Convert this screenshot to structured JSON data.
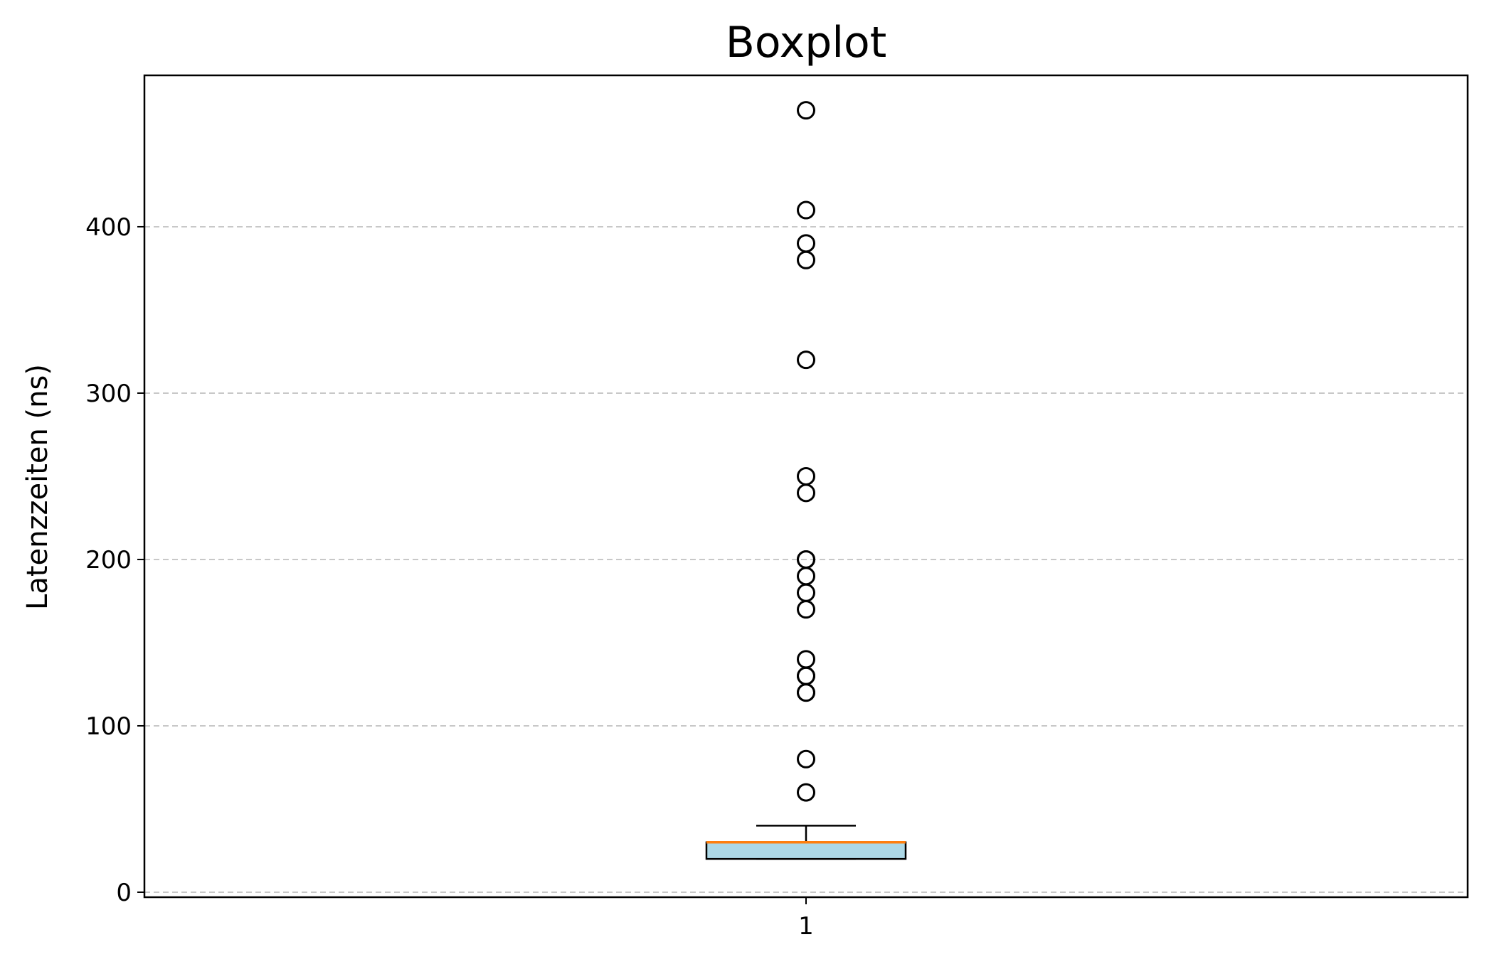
{
  "chart_data": {
    "type": "boxplot",
    "title": "Boxplot",
    "xlabel": "",
    "ylabel": "Latenzzeiten (ns)",
    "categories": [
      "1"
    ],
    "ylim": [
      -3,
      491
    ],
    "yticks": [
      0,
      100,
      200,
      300,
      400
    ],
    "grid": "y-dashed",
    "colors": {
      "box_fill": "#add8e6",
      "median": "#ff7f0e",
      "grid": "#c8c8c8",
      "stroke": "#000000"
    },
    "boxes": [
      {
        "category": "1",
        "whisker_low": 20,
        "q1": 20,
        "median": 30,
        "q3": 30,
        "whisker_high": 40,
        "outliers": [
          60,
          80,
          120,
          120,
          130,
          130,
          140,
          170,
          180,
          190,
          200,
          200,
          240,
          250,
          320,
          380,
          390,
          410,
          470
        ]
      }
    ]
  }
}
